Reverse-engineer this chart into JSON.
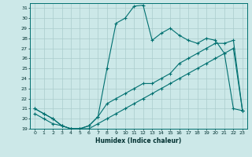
{
  "xlabel": "Humidex (Indice chaleur)",
  "ylabel": "",
  "background_color": "#cce8e8",
  "grid_color": "#aacccc",
  "line_color": "#007070",
  "xlim": [
    -0.5,
    23.5
  ],
  "ylim": [
    19,
    31.5
  ],
  "yticks": [
    19,
    20,
    21,
    22,
    23,
    24,
    25,
    26,
    27,
    28,
    29,
    30,
    31
  ],
  "xticks": [
    0,
    1,
    2,
    3,
    4,
    5,
    6,
    7,
    8,
    9,
    10,
    11,
    12,
    13,
    14,
    15,
    16,
    17,
    18,
    19,
    20,
    21,
    22,
    23
  ],
  "curve1_x": [
    0,
    1,
    2,
    3,
    4,
    5,
    6,
    7,
    8,
    9,
    10,
    11,
    12,
    13,
    14,
    15,
    16,
    17,
    18,
    19,
    20,
    21,
    22,
    23
  ],
  "curve1_y": [
    21.0,
    20.5,
    20.0,
    19.3,
    19.0,
    19.0,
    19.3,
    20.2,
    25.0,
    29.5,
    30.0,
    31.2,
    31.3,
    27.8,
    28.5,
    29.0,
    28.3,
    27.8,
    27.5,
    28.0,
    27.8,
    26.5,
    21.0,
    20.8
  ],
  "curve2_x": [
    0,
    1,
    2,
    3,
    4,
    5,
    6,
    7,
    8,
    9,
    10,
    11,
    12,
    13,
    14,
    15,
    16,
    17,
    18,
    19,
    20,
    21,
    22,
    23
  ],
  "curve2_y": [
    21.0,
    20.5,
    20.0,
    19.3,
    19.0,
    19.0,
    19.3,
    20.2,
    21.5,
    22.0,
    22.5,
    23.0,
    23.5,
    23.5,
    24.0,
    24.5,
    25.5,
    26.0,
    26.5,
    27.0,
    27.5,
    27.5,
    27.8,
    20.8
  ],
  "curve3_x": [
    0,
    1,
    2,
    3,
    4,
    5,
    6,
    7,
    8,
    9,
    10,
    11,
    12,
    13,
    14,
    15,
    16,
    17,
    18,
    19,
    20,
    21,
    22,
    23
  ],
  "curve3_y": [
    20.5,
    20.0,
    19.5,
    19.3,
    19.0,
    19.0,
    19.0,
    19.5,
    20.0,
    20.5,
    21.0,
    21.5,
    22.0,
    22.5,
    23.0,
    23.5,
    24.0,
    24.5,
    25.0,
    25.5,
    26.0,
    26.5,
    27.0,
    20.8
  ]
}
